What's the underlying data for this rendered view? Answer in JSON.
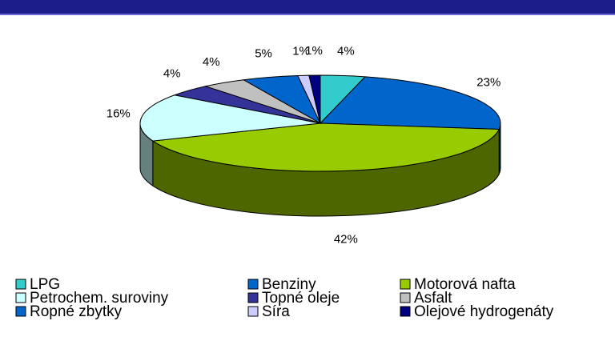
{
  "chart_data": {
    "type": "pie3d",
    "categories": [
      "LPG",
      "Benziny",
      "Motorová nafta",
      "Petrochem. suroviny",
      "Topné oleje",
      "Asfalt",
      "Ropné zbytky",
      "Síra",
      "Olejové hydrogenáty"
    ],
    "values": [
      4,
      23,
      42,
      16,
      4,
      4,
      5,
      1,
      1
    ],
    "value_labels": [
      "4%",
      "23%",
      "42%",
      "16%",
      "4%",
      "4%",
      "5%",
      "1%",
      "1%"
    ],
    "colors": [
      "#33cccc",
      "#0066cc",
      "#99cc00",
      "#ccffff",
      "#333399",
      "#c0c0c0",
      "#0066cc",
      "#ccccff",
      "#000080"
    ]
  }
}
